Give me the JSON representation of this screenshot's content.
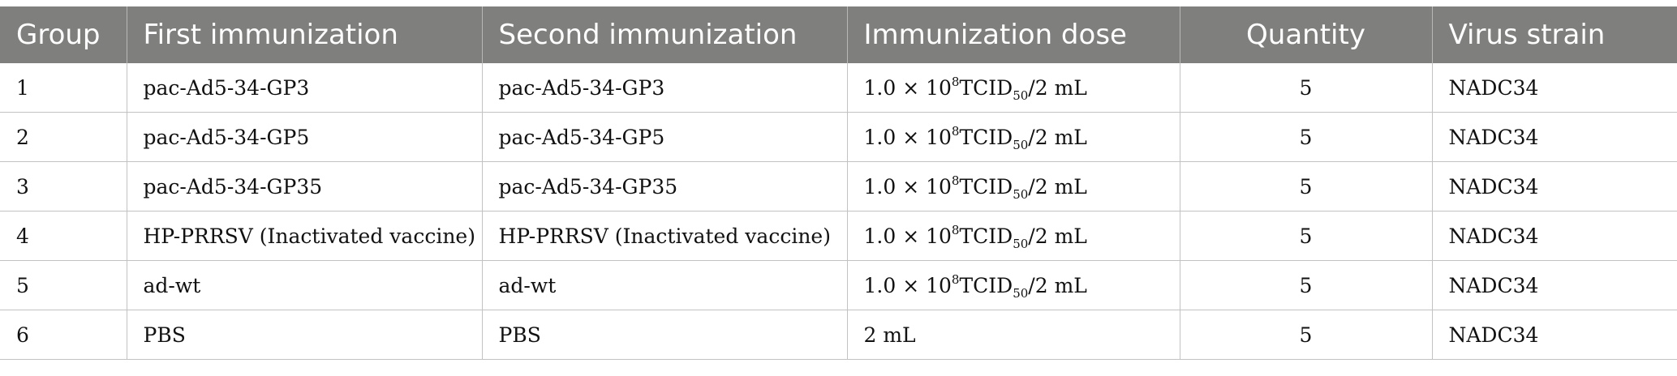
{
  "table": {
    "headers": [
      "Group",
      "First immunization",
      "Second immunization",
      "Immunization dose",
      "Quantity",
      "Virus strain"
    ],
    "rows": [
      {
        "group": "1",
        "first": "pac-Ad5-34-GP3",
        "second": "pac-Ad5-34-GP3",
        "dose": {
          "coef": "1.0 × 10",
          "exp": "8",
          "unit": "TCID",
          "sub": "50",
          "rest": "/2 mL"
        },
        "quantity": "5",
        "strain": "NADC34"
      },
      {
        "group": "2",
        "first": "pac-Ad5-34-GP5",
        "second": "pac-Ad5-34-GP5",
        "dose": {
          "coef": "1.0 × 10",
          "exp": "8",
          "unit": "TCID",
          "sub": "50",
          "rest": "/2 mL"
        },
        "quantity": "5",
        "strain": "NADC34"
      },
      {
        "group": "3",
        "first": "pac-Ad5-34-GP35",
        "second": "pac-Ad5-34-GP35",
        "dose": {
          "coef": "1.0 × 10",
          "exp": "8",
          "unit": "TCID",
          "sub": "50",
          "rest": "/2 mL"
        },
        "quantity": "5",
        "strain": "NADC34"
      },
      {
        "group": "4",
        "first": "HP-PRRSV (Inactivated vaccine)",
        "second": "HP-PRRSV (Inactivated vaccine)",
        "dose": {
          "coef": "1.0 × 10",
          "exp": "8",
          "unit": "TCID",
          "sub": "50",
          "rest": "/2 mL"
        },
        "quantity": "5",
        "strain": "NADC34"
      },
      {
        "group": "5",
        "first": "ad-wt",
        "second": "ad-wt",
        "dose": {
          "coef": "1.0 × 10",
          "exp": "8",
          "unit": "TCID",
          "sub": "50",
          "rest": "/2 mL"
        },
        "quantity": "5",
        "strain": "NADC34"
      },
      {
        "group": "6",
        "first": "PBS",
        "second": "PBS",
        "dose": {
          "plain": "2 mL"
        },
        "quantity": "5",
        "strain": "NADC34"
      }
    ]
  },
  "colors": {
    "header_bg": "#7f7f7d",
    "header_text": "#ffffff",
    "grid": "#c2c2c2"
  }
}
